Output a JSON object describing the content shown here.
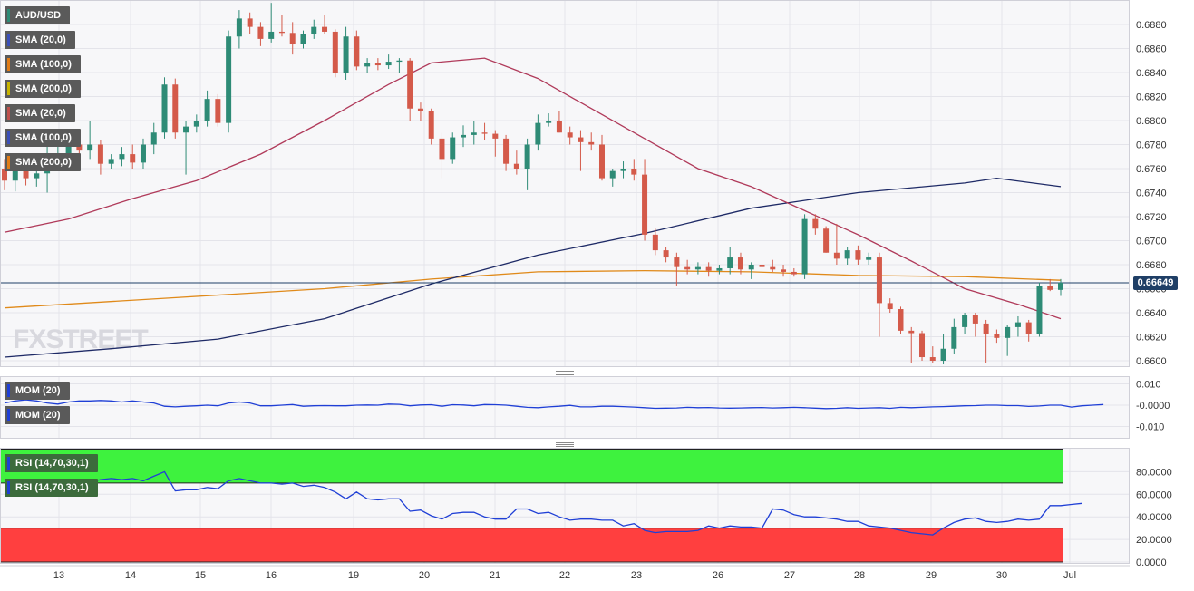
{
  "symbol_label": "AUD/USD",
  "legend": [
    {
      "label": "SMA (20,0)",
      "color": "#3b4fb8"
    },
    {
      "label": "SMA (100,0)",
      "color": "#e07b16"
    },
    {
      "label": "SMA (200,0)",
      "color": "#c8b400"
    },
    {
      "label": "SMA (20,0)",
      "color": "#c0504d"
    },
    {
      "label": "SMA (100,0)",
      "color": "#3b4fb8"
    },
    {
      "label": "SMA (200,0)",
      "color": "#e07b16"
    }
  ],
  "mom_labels": [
    "MOM (20)",
    "MOM (20)"
  ],
  "rsi_labels": [
    "RSI (14,70,30,1)",
    "RSI (14,70,30,1)"
  ],
  "watermark": "FXSTREET",
  "current_price": "0.66649",
  "colors": {
    "bull": "#2e8b76",
    "bear": "#d45a4a",
    "sma20": "#b03a5a",
    "sma100": "#1e2a66",
    "sma200": "#e08a1a",
    "mom": "#1f3fd6",
    "rsi": "#1f3fd6",
    "overbought": "#3ef23e",
    "oversold": "#ff3f3f"
  },
  "chart_data": [
    {
      "type": "candlestick",
      "title": "AUD/USD",
      "x_ticks": [
        "13",
        "14",
        "15",
        "16",
        "19",
        "20",
        "21",
        "22",
        "23",
        "26",
        "27",
        "28",
        "29",
        "30",
        "Jul"
      ],
      "y_ticks": [
        "0.6880",
        "0.6860",
        "0.6840",
        "0.6820",
        "0.6800",
        "0.6780",
        "0.6760",
        "0.6740",
        "0.6720",
        "0.6700",
        "0.6680",
        "0.6660",
        "0.6640",
        "0.6620",
        "0.6600"
      ],
      "ylim": [
        0.6595,
        0.6895
      ],
      "last_price": 0.66649,
      "candles": [
        [
          0.676,
          0.6768,
          0.6742,
          0.675
        ],
        [
          0.675,
          0.6772,
          0.6741,
          0.676
        ],
        [
          0.676,
          0.6765,
          0.6746,
          0.6752
        ],
        [
          0.6752,
          0.676,
          0.6745,
          0.6756
        ],
        [
          0.6756,
          0.6784,
          0.674,
          0.677
        ],
        [
          0.677,
          0.678,
          0.6762,
          0.6772
        ],
        [
          0.6772,
          0.6785,
          0.6765,
          0.678
        ],
        [
          0.678,
          0.679,
          0.677,
          0.6775
        ],
        [
          0.6775,
          0.68,
          0.6768,
          0.678
        ],
        [
          0.678,
          0.6784,
          0.6755,
          0.6764
        ],
        [
          0.6764,
          0.6772,
          0.676,
          0.6768
        ],
        [
          0.6768,
          0.6778,
          0.6762,
          0.6772
        ],
        [
          0.6772,
          0.678,
          0.676,
          0.6765
        ],
        [
          0.6765,
          0.6785,
          0.676,
          0.678
        ],
        [
          0.678,
          0.6798,
          0.6772,
          0.679
        ],
        [
          0.679,
          0.6836,
          0.6785,
          0.683
        ],
        [
          0.683,
          0.6835,
          0.6785,
          0.679
        ],
        [
          0.679,
          0.68,
          0.6755,
          0.6795
        ],
        [
          0.6795,
          0.6805,
          0.679,
          0.68
        ],
        [
          0.68,
          0.6825,
          0.6795,
          0.6818
        ],
        [
          0.6818,
          0.6822,
          0.6795,
          0.6798
        ],
        [
          0.6798,
          0.6875,
          0.679,
          0.687
        ],
        [
          0.687,
          0.6892,
          0.686,
          0.6885
        ],
        [
          0.6885,
          0.689,
          0.6872,
          0.6878
        ],
        [
          0.6878,
          0.6882,
          0.6862,
          0.6868
        ],
        [
          0.6868,
          0.6898,
          0.6865,
          0.6874
        ],
        [
          0.6874,
          0.6888,
          0.687,
          0.6873
        ],
        [
          0.6873,
          0.6882,
          0.6855,
          0.6864
        ],
        [
          0.6864,
          0.6875,
          0.686,
          0.6872
        ],
        [
          0.6872,
          0.6884,
          0.6868,
          0.6878
        ],
        [
          0.6878,
          0.6888,
          0.6872,
          0.6874
        ],
        [
          0.6874,
          0.6876,
          0.6836,
          0.684
        ],
        [
          0.684,
          0.6878,
          0.6834,
          0.687
        ],
        [
          0.687,
          0.6875,
          0.6842,
          0.6845
        ],
        [
          0.6845,
          0.6852,
          0.684,
          0.6848
        ],
        [
          0.6848,
          0.6852,
          0.6842,
          0.6846
        ],
        [
          0.6846,
          0.6855,
          0.6843,
          0.6849
        ],
        [
          0.6849,
          0.6852,
          0.684,
          0.685
        ],
        [
          0.685,
          0.6852,
          0.68,
          0.681
        ],
        [
          0.681,
          0.6815,
          0.68,
          0.6808
        ],
        [
          0.6808,
          0.681,
          0.678,
          0.6785
        ],
        [
          0.6785,
          0.679,
          0.6752,
          0.6768
        ],
        [
          0.6768,
          0.679,
          0.6764,
          0.6786
        ],
        [
          0.6786,
          0.6796,
          0.6778,
          0.6788
        ],
        [
          0.6788,
          0.68,
          0.678,
          0.679
        ],
        [
          0.679,
          0.6798,
          0.6784,
          0.6789
        ],
        [
          0.6789,
          0.6792,
          0.677,
          0.6785
        ],
        [
          0.6785,
          0.6788,
          0.6758,
          0.6764
        ],
        [
          0.6764,
          0.6775,
          0.6755,
          0.676
        ],
        [
          0.676,
          0.6785,
          0.6742,
          0.678
        ],
        [
          0.678,
          0.6805,
          0.6775,
          0.6798
        ],
        [
          0.6798,
          0.6806,
          0.6795,
          0.68
        ],
        [
          0.68,
          0.6808,
          0.679,
          0.679
        ],
        [
          0.679,
          0.6795,
          0.678,
          0.6786
        ],
        [
          0.6786,
          0.6792,
          0.6758,
          0.6782
        ],
        [
          0.6782,
          0.679,
          0.6775,
          0.678
        ],
        [
          0.678,
          0.6788,
          0.675,
          0.6752
        ],
        [
          0.6752,
          0.676,
          0.6745,
          0.6758
        ],
        [
          0.6758,
          0.6766,
          0.6752,
          0.676
        ],
        [
          0.676,
          0.6768,
          0.675,
          0.6755
        ],
        [
          0.6755,
          0.6768,
          0.67,
          0.6705
        ],
        [
          0.6705,
          0.671,
          0.6688,
          0.6692
        ],
        [
          0.6692,
          0.6695,
          0.6682,
          0.6686
        ],
        [
          0.6686,
          0.669,
          0.6662,
          0.6678
        ],
        [
          0.6678,
          0.6684,
          0.6672,
          0.6676
        ],
        [
          0.6676,
          0.6682,
          0.6672,
          0.6678
        ],
        [
          0.6678,
          0.6682,
          0.667,
          0.6675
        ],
        [
          0.6675,
          0.668,
          0.6672,
          0.6677
        ],
        [
          0.6677,
          0.6695,
          0.6672,
          0.6686
        ],
        [
          0.6686,
          0.669,
          0.6672,
          0.6676
        ],
        [
          0.6676,
          0.6682,
          0.6668,
          0.668
        ],
        [
          0.668,
          0.6685,
          0.667,
          0.6678
        ],
        [
          0.6678,
          0.6684,
          0.6674,
          0.6676
        ],
        [
          0.6676,
          0.668,
          0.667,
          0.6674
        ],
        [
          0.6674,
          0.6677,
          0.667,
          0.6672
        ],
        [
          0.6672,
          0.6722,
          0.6668,
          0.6718
        ],
        [
          0.6718,
          0.6722,
          0.6705,
          0.671
        ],
        [
          0.671,
          0.6712,
          0.669,
          0.669
        ],
        [
          0.669,
          0.6714,
          0.668,
          0.6685
        ],
        [
          0.6685,
          0.6695,
          0.668,
          0.6692
        ],
        [
          0.6692,
          0.6696,
          0.668,
          0.6684
        ],
        [
          0.6684,
          0.669,
          0.668,
          0.6686
        ],
        [
          0.6686,
          0.669,
          0.662,
          0.6648
        ],
        [
          0.6648,
          0.6652,
          0.664,
          0.6643
        ],
        [
          0.6643,
          0.6645,
          0.6622,
          0.6625
        ],
        [
          0.6625,
          0.6628,
          0.6598,
          0.6623
        ],
        [
          0.6623,
          0.6625,
          0.66,
          0.6603
        ],
        [
          0.6603,
          0.6612,
          0.6598,
          0.66
        ],
        [
          0.66,
          0.6622,
          0.6597,
          0.661
        ],
        [
          0.661,
          0.6635,
          0.6606,
          0.6628
        ],
        [
          0.6628,
          0.664,
          0.6622,
          0.6638
        ],
        [
          0.6638,
          0.664,
          0.662,
          0.6631
        ],
        [
          0.6631,
          0.6634,
          0.6598,
          0.6622
        ],
        [
          0.6622,
          0.6626,
          0.6615,
          0.6619
        ],
        [
          0.6619,
          0.663,
          0.6604,
          0.6628
        ],
        [
          0.6628,
          0.6637,
          0.662,
          0.6632
        ],
        [
          0.6632,
          0.6634,
          0.6616,
          0.6622
        ],
        [
          0.6622,
          0.6665,
          0.662,
          0.6662
        ],
        [
          0.6662,
          0.6668,
          0.6658,
          0.6659
        ],
        [
          0.6659,
          0.6668,
          0.6654,
          0.6665
        ]
      ],
      "sma20": [
        [
          0,
          0.6707
        ],
        [
          6,
          0.6718
        ],
        [
          12,
          0.6735
        ],
        [
          18,
          0.675
        ],
        [
          24,
          0.6772
        ],
        [
          30,
          0.68
        ],
        [
          36,
          0.683
        ],
        [
          40,
          0.6848
        ],
        [
          45,
          0.6852
        ],
        [
          50,
          0.6835
        ],
        [
          55,
          0.681
        ],
        [
          60,
          0.6785
        ],
        [
          65,
          0.676
        ],
        [
          70,
          0.6745
        ],
        [
          75,
          0.6725
        ],
        [
          80,
          0.6705
        ],
        [
          85,
          0.6683
        ],
        [
          90,
          0.666
        ],
        [
          95,
          0.6647
        ],
        [
          99,
          0.6635
        ]
      ],
      "sma100": [
        [
          0,
          0.6603
        ],
        [
          10,
          0.661
        ],
        [
          20,
          0.6618
        ],
        [
          30,
          0.6635
        ],
        [
          40,
          0.6664
        ],
        [
          50,
          0.6688
        ],
        [
          60,
          0.6706
        ],
        [
          70,
          0.6727
        ],
        [
          80,
          0.674
        ],
        [
          90,
          0.6748
        ],
        [
          93,
          0.6752
        ],
        [
          99,
          0.6745
        ]
      ],
      "sma200": [
        [
          0,
          0.6644
        ],
        [
          15,
          0.6652
        ],
        [
          30,
          0.666
        ],
        [
          40,
          0.6668
        ],
        [
          50,
          0.6674
        ],
        [
          60,
          0.6675
        ],
        [
          70,
          0.6674
        ],
        [
          80,
          0.6671
        ],
        [
          90,
          0.667
        ],
        [
          99,
          0.6667
        ]
      ]
    },
    {
      "type": "line",
      "title": "MOM (20)",
      "y_ticks": [
        "0.010",
        "-0.0000",
        "-0.010"
      ],
      "ylim": [
        -0.015,
        0.015
      ],
      "values": [
        0.001,
        0.002,
        0.0025,
        0.002,
        0.001,
        0.0005,
        0.0015,
        0.002,
        0.002,
        0.0022,
        0.002,
        0.0015,
        0.002,
        0.0015,
        0.001,
        -0.0005,
        -0.0008,
        -0.0005,
        -0.0003,
        0.0,
        -0.0003,
        0.001,
        0.0015,
        0.001,
        -0.0003,
        -0.0003,
        0.0,
        0.0003,
        -0.0005,
        -0.0003,
        -0.0002,
        -0.0003,
        -0.0003,
        0.0,
        0.0001,
        0.0,
        0.0005,
        0.0004,
        -0.0003,
        0.0001,
        0.0002,
        -0.0005,
        0.0002,
        0.0001,
        -0.0003,
        0.0003,
        0.0002,
        0.0,
        -0.0005,
        -0.001,
        -0.0012,
        -0.0008,
        -0.0005,
        -0.0001,
        -0.0008,
        -0.0008,
        -0.0005,
        -0.0005,
        -0.0007,
        -0.0009,
        -0.0012,
        -0.0015,
        -0.0014,
        -0.0013,
        -0.001,
        -0.0012,
        -0.0011,
        -0.0013,
        -0.0014,
        -0.0013,
        -0.0012,
        -0.0011,
        -0.0013,
        -0.0012,
        -0.001,
        -0.0012,
        -0.0014,
        -0.0016,
        -0.0015,
        -0.0012,
        -0.0015,
        -0.0013,
        -0.0012,
        -0.0015,
        -0.001,
        -0.0012,
        -0.001,
        -0.0008,
        -0.0007,
        -0.0005,
        -0.0003,
        -0.0002,
        0.0,
        0.0,
        -0.0002,
        -0.0002,
        -0.0006,
        -0.0004,
        0.0,
        0.0,
        -0.0009,
        -0.0003,
        0.0,
        0.0003
      ]
    },
    {
      "type": "line",
      "title": "RSI (14,70,30,1)",
      "y_ticks": [
        "80.0000",
        "60.0000",
        "40.0000",
        "20.0000",
        "0.0000"
      ],
      "ylim": [
        0,
        100
      ],
      "levels": [
        70,
        30
      ],
      "values": [
        72,
        72,
        73,
        71,
        68,
        68,
        70,
        70,
        71,
        73,
        74,
        73,
        74,
        72,
        76,
        80,
        63,
        64,
        64,
        66,
        65,
        72,
        74,
        72,
        70,
        70,
        69,
        70,
        67,
        68,
        66,
        62,
        56,
        62,
        56,
        55,
        56,
        56,
        45,
        46,
        41,
        38,
        43,
        44,
        44,
        40,
        38,
        38,
        47,
        47,
        43,
        44,
        40,
        37,
        38,
        38,
        37,
        37,
        32,
        34,
        28,
        26,
        27,
        27,
        27,
        28,
        32,
        30,
        32,
        31,
        31,
        30,
        47,
        46,
        42,
        40,
        40,
        39,
        38,
        36,
        36,
        32,
        31,
        30,
        28,
        26,
        25,
        24,
        30,
        35,
        38,
        39,
        36,
        35,
        36,
        38,
        37,
        38,
        50,
        50,
        51,
        52
      ]
    }
  ]
}
